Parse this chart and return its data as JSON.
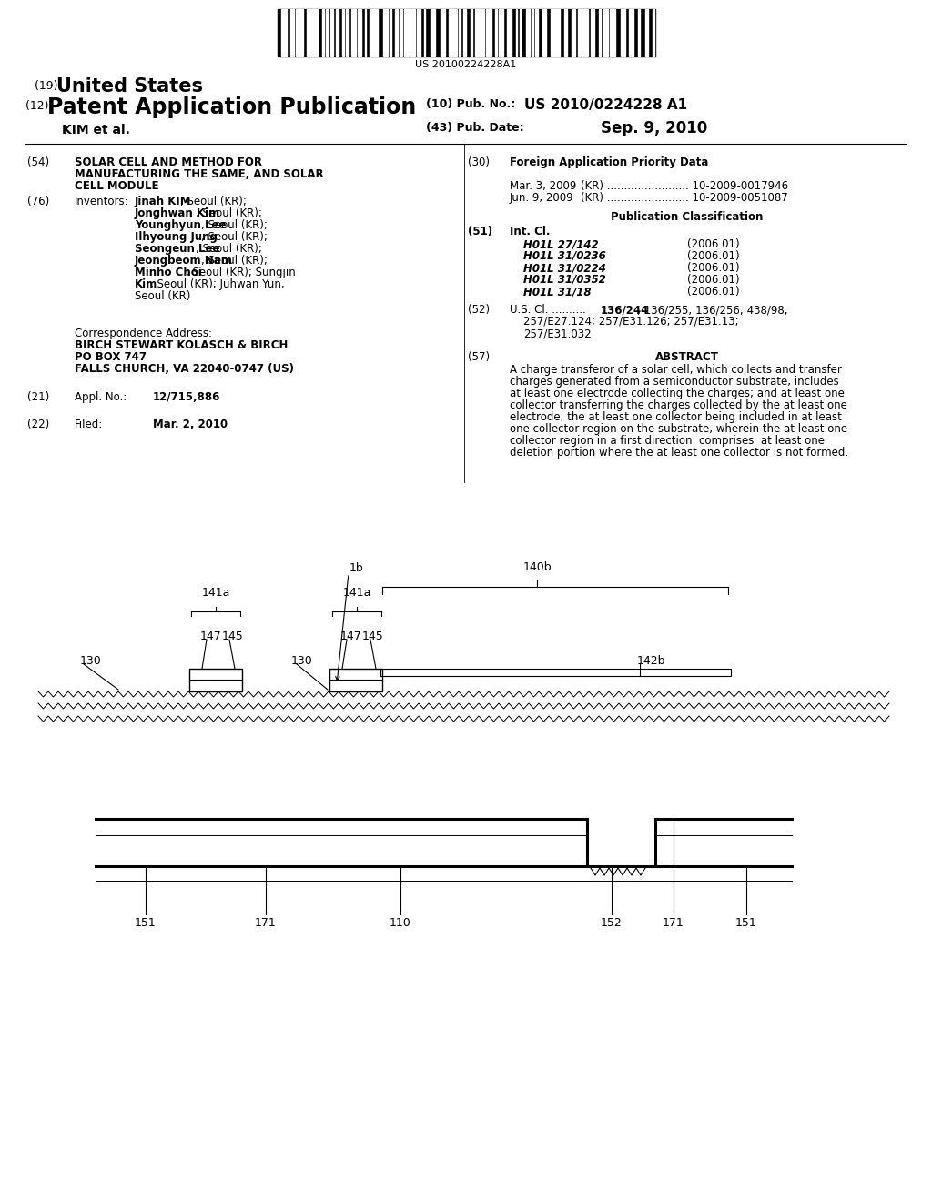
{
  "bg_color": "#ffffff",
  "barcode_text": "US 20100224228A1",
  "title_19": "(19)",
  "title_19_bold": "United States",
  "title_12": "(12)",
  "title_12_bold": "Patent Application Publication",
  "pub_no_label": "(10) Pub. No.:",
  "pub_no_value": "US 2010/0224228 A1",
  "pub_date_label": "(43) Pub. Date:",
  "pub_date_value": "Sep. 9, 2010",
  "inventor_name": "KIM et al.",
  "field54_lines": [
    "SOLAR CELL AND METHOD FOR",
    "MANUFACTURING THE SAME, AND SOLAR",
    "CELL MODULE"
  ],
  "inventors": [
    [
      "Jinah KIM",
      ", Seoul (KR);"
    ],
    [
      "Jonghwan Kim",
      ", Seoul (KR);"
    ],
    [
      "Younghyun Lee",
      ", Seoul (KR);"
    ],
    [
      "Ilhyoung Jung",
      ", Seoul (KR);"
    ],
    [
      "Seongeun Lee",
      ", Seoul (KR);"
    ],
    [
      "Jeongbeom Nam",
      ", Seoul (KR);"
    ],
    [
      "Minho Choi",
      ", Seoul (KR); Sungjin"
    ],
    [
      "Kim",
      ", Seoul (KR); Juhwan Yun,"
    ],
    [
      "",
      "Seoul (KR)"
    ]
  ],
  "priority1": [
    "Mar. 3, 2009",
    "(KR) ........................ 10-2009-0017946"
  ],
  "priority2": [
    "Jun. 9, 2009",
    "(KR) ........................ 10-2009-0051087"
  ],
  "int_cl": [
    [
      "H01L 27/142",
      "(2006.01)"
    ],
    [
      "H01L 31/0236",
      "(2006.01)"
    ],
    [
      "H01L 31/0224",
      "(2006.01)"
    ],
    [
      "H01L 31/0352",
      "(2006.01)"
    ],
    [
      "H01L 31/18",
      "(2006.01)"
    ]
  ],
  "us_cl_lines": [
    "136/244; 136/255; 136/256; 438/98;",
    "257/E27.124; 257/E31.126; 257/E31.13;",
    "257/E31.032"
  ],
  "abstract_lines": [
    "A charge transferor of a solar cell, which collects and transfer",
    "charges generated from a semiconductor substrate, includes",
    "at least one electrode collecting the charges; and at least one",
    "collector transferring the charges collected by the at least one",
    "electrode, the at least one collector being included in at least",
    "one collector region on the substrate, wherein the at least one",
    "collector region in a first direction  comprises  at least one",
    "deletion portion where the at least one collector is not formed."
  ]
}
